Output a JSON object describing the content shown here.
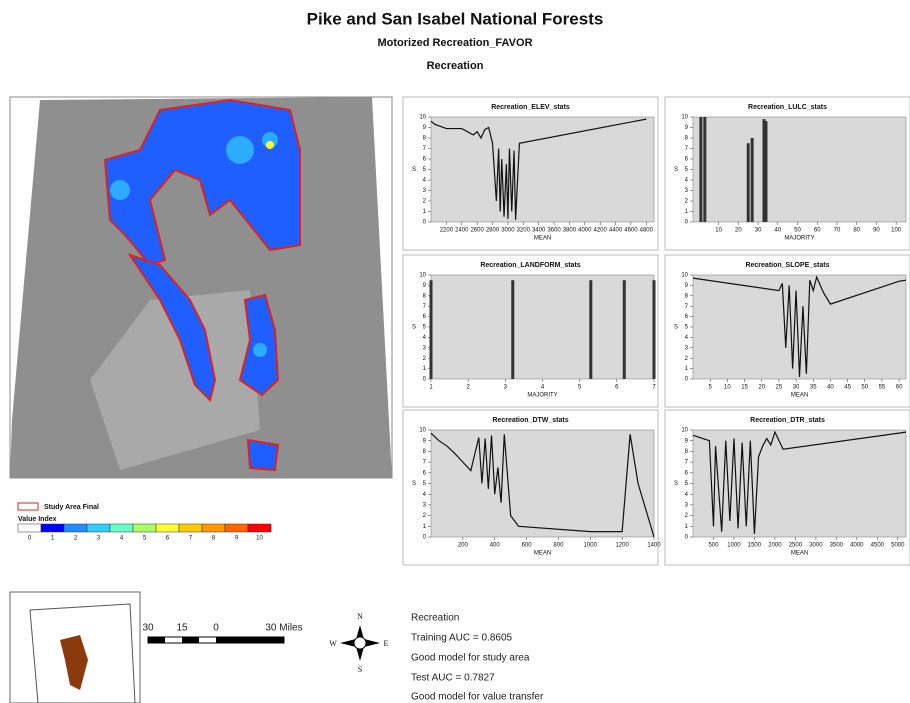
{
  "header": {
    "title": "Pike and San Isabel National Forests",
    "subtitle": "Motorized Recreation_FAVOR",
    "model": "Recreation"
  },
  "legend": {
    "boundary": "Study Area Final",
    "value_title": "Value Index",
    "classes": [
      {
        "label": "0",
        "color": "#ffffff"
      },
      {
        "label": "1",
        "color": "#0000ff"
      },
      {
        "label": "2",
        "color": "#1e8cff"
      },
      {
        "label": "3",
        "color": "#33ccff"
      },
      {
        "label": "4",
        "color": "#66ffcc"
      },
      {
        "label": "5",
        "color": "#aaff66"
      },
      {
        "label": "6",
        "color": "#ffff33"
      },
      {
        "label": "7",
        "color": "#ffcc00"
      },
      {
        "label": "8",
        "color": "#ff9900"
      },
      {
        "label": "9",
        "color": "#ff6600"
      },
      {
        "label": "10",
        "color": "#ff0000"
      }
    ]
  },
  "scale_bar": {
    "labels": [
      "30",
      "15",
      "0",
      "30 Miles"
    ]
  },
  "compass": {
    "n": "N",
    "s": "S",
    "e": "E",
    "w": "W"
  },
  "summary": [
    "Recreation",
    "Training AUC = 0.8605",
    "Good model for study area",
    "Test AUC = 0.7827",
    "Good model for value transfer"
  ],
  "chart_data": [
    {
      "type": "line",
      "title": "Recreation_ELEV_stats",
      "x_label": "MEAN",
      "y_label": "S",
      "color": "#111111",
      "x": [
        2000,
        2050,
        2200,
        2400,
        2550,
        2600,
        2650,
        2700,
        2750,
        2800,
        2850,
        2880,
        2900,
        2920,
        2950,
        2980,
        3000,
        3020,
        3050,
        3080,
        3100,
        3150,
        4800
      ],
      "values": [
        9.6,
        9.3,
        8.9,
        8.9,
        8.3,
        8.6,
        8.0,
        8.8,
        9.0,
        7.5,
        2.0,
        7.0,
        1.0,
        6.0,
        0.5,
        5.5,
        0.3,
        7.0,
        1.0,
        6.8,
        0.2,
        7.5,
        9.8
      ],
      "xlim": [
        2000,
        4900
      ],
      "xticks": [
        2200,
        2400,
        2600,
        2800,
        3000,
        3200,
        3400,
        3600,
        3800,
        4000,
        4200,
        4400,
        4600,
        4800
      ],
      "ylim": [
        0,
        10
      ],
      "yticks": [
        0,
        1,
        2,
        3,
        4,
        5,
        6,
        7,
        8,
        9,
        10
      ]
    },
    {
      "type": "bar",
      "title": "Recreation_LULC_stats",
      "x_label": "MAJORITY",
      "y_label": "S",
      "color": "#333333",
      "x": [
        1,
        3,
        25,
        27,
        33,
        34
      ],
      "values": [
        10,
        10,
        7.5,
        8,
        9.8,
        9.6
      ],
      "xlim": [
        -3,
        105
      ],
      "xticks": [
        10,
        20,
        30,
        40,
        50,
        60,
        70,
        80,
        90,
        100
      ],
      "ylim": [
        0,
        10
      ],
      "yticks": [
        0,
        1,
        2,
        3,
        4,
        5,
        6,
        7,
        8,
        9,
        10
      ]
    },
    {
      "type": "bar",
      "title": "Recreation_LANDFORM_stats",
      "x_label": "MAJORITY",
      "y_label": "S",
      "color": "#333333",
      "x": [
        1,
        3.2,
        5.3,
        6.2,
        7
      ],
      "values": [
        9.5,
        9.5,
        9.5,
        9.5,
        9.5
      ],
      "xlim": [
        1,
        7
      ],
      "xticks": [
        1,
        2,
        3,
        4,
        5,
        6,
        7
      ],
      "ylim": [
        0,
        10
      ],
      "yticks": [
        0,
        1,
        2,
        3,
        4,
        5,
        6,
        7,
        8,
        9,
        10
      ]
    },
    {
      "type": "line",
      "title": "Recreation_SLOPE_stats",
      "x_label": "MEAN",
      "y_label": "S",
      "color": "#111111",
      "x": [
        0,
        25,
        26,
        27,
        28,
        29,
        30,
        31,
        32,
        33,
        34,
        35,
        36,
        38,
        40,
        60,
        62
      ],
      "values": [
        9.7,
        8.5,
        9.2,
        3,
        9,
        1,
        8.5,
        0.2,
        7,
        0.5,
        9.5,
        8.5,
        9.8,
        8.3,
        7.2,
        9.4,
        9.5
      ],
      "xlim": [
        0,
        62
      ],
      "xticks": [
        5,
        10,
        15,
        20,
        25,
        30,
        35,
        40,
        45,
        50,
        55,
        60
      ],
      "ylim": [
        0,
        10
      ],
      "yticks": [
        0,
        1,
        2,
        3,
        4,
        5,
        6,
        7,
        8,
        9,
        10
      ]
    },
    {
      "type": "line",
      "title": "Recreation_DTW_stats",
      "x_label": "MEAN",
      "y_label": "S",
      "color": "#111111",
      "x": [
        0,
        50,
        100,
        150,
        200,
        250,
        300,
        320,
        340,
        360,
        380,
        400,
        420,
        440,
        460,
        500,
        550,
        1000,
        1200,
        1250,
        1300,
        1400
      ],
      "values": [
        9.7,
        9,
        8.5,
        7.8,
        7,
        6.2,
        9.3,
        5,
        9.2,
        4.5,
        9.5,
        4,
        6.5,
        3.2,
        9.6,
        2,
        1,
        0.5,
        0.5,
        9.6,
        5,
        0
      ],
      "xlim": [
        0,
        1400
      ],
      "xticks": [
        200,
        400,
        600,
        800,
        1000,
        1200,
        1400
      ],
      "ylim": [
        0,
        10
      ],
      "yticks": [
        0,
        1,
        2,
        3,
        4,
        5,
        6,
        7,
        8,
        9,
        10
      ]
    },
    {
      "type": "line",
      "title": "Recreation_DTR_stats",
      "x_label": "MEAN",
      "y_label": "S",
      "color": "#111111",
      "x": [
        0,
        400,
        500,
        550,
        700,
        800,
        900,
        1000,
        1100,
        1200,
        1300,
        1400,
        1500,
        1600,
        1700,
        1800,
        1900,
        2000,
        2200,
        5200
      ],
      "values": [
        9.5,
        9,
        1,
        8.5,
        0.5,
        9,
        1.5,
        9.2,
        0.8,
        8.8,
        1,
        9,
        0.3,
        7.5,
        8.5,
        9.2,
        8.6,
        9.8,
        8.2,
        9.8
      ],
      "xlim": [
        0,
        5200
      ],
      "xticks": [
        500,
        1000,
        1500,
        2000,
        2500,
        3000,
        3500,
        4000,
        4500,
        5000
      ],
      "ylim": [
        0,
        10
      ],
      "yticks": [
        0,
        1,
        2,
        3,
        4,
        5,
        6,
        7,
        8,
        9,
        10
      ]
    }
  ]
}
